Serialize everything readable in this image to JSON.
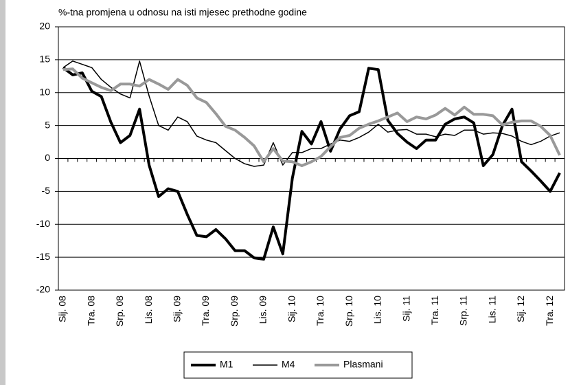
{
  "chart_data": {
    "type": "line",
    "title": "%-tna promjena u odnosu na isti mjesec prethodne godine",
    "categories": [
      "Sij. 08",
      null,
      null,
      "Tra. 08",
      null,
      null,
      "Srp. 08",
      null,
      null,
      "Lis. 08",
      null,
      null,
      "Sij. 09",
      null,
      null,
      "Tra. 09",
      null,
      null,
      "Srp. 09",
      null,
      null,
      "Lis. 09",
      null,
      null,
      "Sij. 10",
      null,
      null,
      "Tra. 10",
      null,
      null,
      "Srp. 10",
      null,
      null,
      "Lis. 10",
      null,
      null,
      "Sij. 11",
      null,
      null,
      "Tra. 11",
      null,
      null,
      "Srp. 11",
      null,
      null,
      "Lis. 11",
      null,
      null,
      "Sij. 12",
      null,
      null,
      "Tra. 12",
      null
    ],
    "series": [
      {
        "name": "M1",
        "color": "#000000",
        "values": [
          13.8,
          12.7,
          13,
          10.2,
          9.4,
          5.5,
          2.4,
          3.5,
          7.5,
          -1,
          -5.8,
          -4.6,
          -5,
          -8.5,
          -11.7,
          -11.9,
          -10.8,
          -12.2,
          -14,
          -14,
          -15.1,
          -15.3,
          -10.4,
          -14.5,
          -3,
          4.1,
          2.2,
          5.6,
          1.1,
          4.5,
          6.5,
          7.1,
          13.7,
          13.5,
          5.8,
          3.8,
          2.5,
          1.5,
          2.8,
          2.8,
          5.2,
          6,
          6.3,
          5.4,
          -1.1,
          0.6,
          5,
          7.5,
          -0.5,
          -1.9,
          -3.4,
          -5,
          -2.2
        ]
      },
      {
        "name": "M4",
        "color": "#000000",
        "values": [
          13.8,
          14.8,
          14.3,
          13.8,
          12,
          10.8,
          9.8,
          9.2,
          14.8,
          9.5,
          5,
          4.3,
          6.3,
          5.6,
          3.4,
          2.8,
          2.4,
          1.2,
          0,
          -0.8,
          -1.2,
          -1,
          2.4,
          -1,
          0.9,
          0.9,
          1.5,
          1.5,
          2.2,
          2.8,
          2.6,
          3.2,
          4,
          5.2,
          4,
          4.3,
          4.4,
          3.7,
          3.7,
          3.3,
          3.7,
          3.5,
          4.3,
          4.3,
          3.7,
          3.9,
          3.8,
          3.4,
          2.6,
          2.1,
          2.6,
          3.4,
          3.9
        ]
      },
      {
        "name": "Plasmani",
        "color": "#999999",
        "values": [
          13.5,
          13.6,
          12.2,
          11.5,
          10.8,
          10.3,
          11.3,
          11.3,
          11,
          12,
          11.3,
          10.5,
          12,
          11.1,
          9.2,
          8.5,
          6.8,
          4.9,
          4.3,
          3.2,
          1.9,
          -0.5,
          1.5,
          -0.4,
          -0.5,
          -1.1,
          -0.5,
          0.3,
          1.8,
          3.2,
          3.5,
          4.6,
          5.2,
          5.7,
          6.3,
          6.9,
          5.6,
          6.3,
          6,
          6.6,
          7.6,
          6.6,
          7.8,
          6.7,
          6.7,
          6.5,
          5.1,
          5.5,
          5.7,
          5.7,
          4.9,
          3.5,
          0.5
        ]
      }
    ],
    "ylim": [
      -20,
      20
    ],
    "yticks": [
      -20,
      -15,
      -10,
      -5,
      0,
      5,
      10,
      15,
      20
    ],
    "grid": true,
    "legend": "bottom"
  }
}
